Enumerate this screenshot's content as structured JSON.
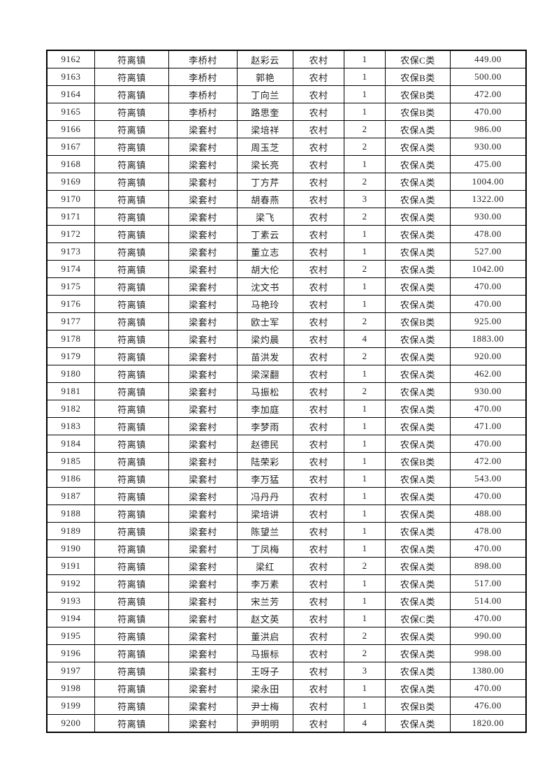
{
  "page": {
    "background_color": "#ffffff",
    "table_border_color": "#000000",
    "table_text_color": "#1f1f1f"
  },
  "table": {
    "rows": [
      [
        "9162",
        "符离镇",
        "李桥村",
        "赵彩云",
        "农村",
        "1",
        "农保C类",
        "449.00"
      ],
      [
        "9163",
        "符离镇",
        "李桥村",
        "郭艳",
        "农村",
        "1",
        "农保B类",
        "500.00"
      ],
      [
        "9164",
        "符离镇",
        "李桥村",
        "丁向兰",
        "农村",
        "1",
        "农保B类",
        "472.00"
      ],
      [
        "9165",
        "符离镇",
        "李桥村",
        "路思奎",
        "农村",
        "1",
        "农保B类",
        "470.00"
      ],
      [
        "9166",
        "符离镇",
        "梁套村",
        "梁培祥",
        "农村",
        "2",
        "农保A类",
        "986.00"
      ],
      [
        "9167",
        "符离镇",
        "梁套村",
        "周玉芝",
        "农村",
        "2",
        "农保A类",
        "930.00"
      ],
      [
        "9168",
        "符离镇",
        "梁套村",
        "梁长亮",
        "农村",
        "1",
        "农保A类",
        "475.00"
      ],
      [
        "9169",
        "符离镇",
        "梁套村",
        "丁方芹",
        "农村",
        "2",
        "农保A类",
        "1004.00"
      ],
      [
        "9170",
        "符离镇",
        "梁套村",
        "胡春燕",
        "农村",
        "3",
        "农保A类",
        "1322.00"
      ],
      [
        "9171",
        "符离镇",
        "梁套村",
        "梁飞",
        "农村",
        "2",
        "农保A类",
        "930.00"
      ],
      [
        "9172",
        "符离镇",
        "梁套村",
        "丁素云",
        "农村",
        "1",
        "农保A类",
        "478.00"
      ],
      [
        "9173",
        "符离镇",
        "梁套村",
        "董立志",
        "农村",
        "1",
        "农保A类",
        "527.00"
      ],
      [
        "9174",
        "符离镇",
        "梁套村",
        "胡大伦",
        "农村",
        "2",
        "农保A类",
        "1042.00"
      ],
      [
        "9175",
        "符离镇",
        "梁套村",
        "沈文书",
        "农村",
        "1",
        "农保A类",
        "470.00"
      ],
      [
        "9176",
        "符离镇",
        "梁套村",
        "马艳玲",
        "农村",
        "1",
        "农保A类",
        "470.00"
      ],
      [
        "9177",
        "符离镇",
        "梁套村",
        "欧士军",
        "农村",
        "2",
        "农保B类",
        "925.00"
      ],
      [
        "9178",
        "符离镇",
        "梁套村",
        "梁灼晨",
        "农村",
        "4",
        "农保A类",
        "1883.00"
      ],
      [
        "9179",
        "符离镇",
        "梁套村",
        "苗洪发",
        "农村",
        "2",
        "农保A类",
        "920.00"
      ],
      [
        "9180",
        "符离镇",
        "梁套村",
        "梁深翻",
        "农村",
        "1",
        "农保A类",
        "462.00"
      ],
      [
        "9181",
        "符离镇",
        "梁套村",
        "马振松",
        "农村",
        "2",
        "农保A类",
        "930.00"
      ],
      [
        "9182",
        "符离镇",
        "梁套村",
        "李加庭",
        "农村",
        "1",
        "农保A类",
        "470.00"
      ],
      [
        "9183",
        "符离镇",
        "梁套村",
        "李梦雨",
        "农村",
        "1",
        "农保A类",
        "471.00"
      ],
      [
        "9184",
        "符离镇",
        "梁套村",
        "赵德民",
        "农村",
        "1",
        "农保A类",
        "470.00"
      ],
      [
        "9185",
        "符离镇",
        "梁套村",
        "陆荣彩",
        "农村",
        "1",
        "农保B类",
        "472.00"
      ],
      [
        "9186",
        "符离镇",
        "梁套村",
        "李万猛",
        "农村",
        "1",
        "农保A类",
        "543.00"
      ],
      [
        "9187",
        "符离镇",
        "梁套村",
        "冯丹丹",
        "农村",
        "1",
        "农保A类",
        "470.00"
      ],
      [
        "9188",
        "符离镇",
        "梁套村",
        "梁培讲",
        "农村",
        "1",
        "农保A类",
        "488.00"
      ],
      [
        "9189",
        "符离镇",
        "梁套村",
        "陈望兰",
        "农村",
        "1",
        "农保A类",
        "478.00"
      ],
      [
        "9190",
        "符离镇",
        "梁套村",
        "丁凤梅",
        "农村",
        "1",
        "农保A类",
        "470.00"
      ],
      [
        "9191",
        "符离镇",
        "梁套村",
        "梁红",
        "农村",
        "2",
        "农保A类",
        "898.00"
      ],
      [
        "9192",
        "符离镇",
        "梁套村",
        "李万素",
        "农村",
        "1",
        "农保A类",
        "517.00"
      ],
      [
        "9193",
        "符离镇",
        "梁套村",
        "宋兰芳",
        "农村",
        "1",
        "农保A类",
        "514.00"
      ],
      [
        "9194",
        "符离镇",
        "梁套村",
        "赵文英",
        "农村",
        "1",
        "农保C类",
        "470.00"
      ],
      [
        "9195",
        "符离镇",
        "梁套村",
        "董洪启",
        "农村",
        "2",
        "农保A类",
        "990.00"
      ],
      [
        "9196",
        "符离镇",
        "梁套村",
        "马振标",
        "农村",
        "2",
        "农保A类",
        "998.00"
      ],
      [
        "9197",
        "符离镇",
        "梁套村",
        "王呀子",
        "农村",
        "3",
        "农保A类",
        "1380.00"
      ],
      [
        "9198",
        "符离镇",
        "梁套村",
        "梁永田",
        "农村",
        "1",
        "农保A类",
        "470.00"
      ],
      [
        "9199",
        "符离镇",
        "梁套村",
        "尹士梅",
        "农村",
        "1",
        "农保B类",
        "476.00"
      ],
      [
        "9200",
        "符离镇",
        "梁套村",
        "尹明明",
        "农村",
        "4",
        "农保A类",
        "1820.00"
      ]
    ]
  }
}
